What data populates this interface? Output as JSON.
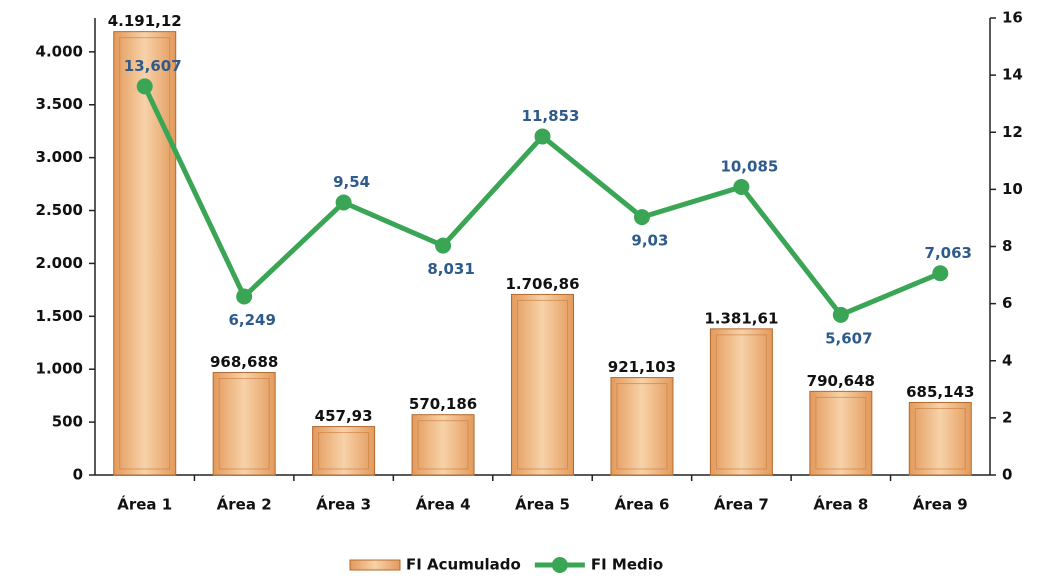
{
  "chart_data": {
    "type": "bar",
    "categories": [
      "Área 1",
      "Área 2",
      "Área 3",
      "Área 4",
      "Área 5",
      "Área 6",
      "Área 7",
      "Área 8",
      "Área 9"
    ],
    "series": [
      {
        "name": "FI Acumulado",
        "type": "bar",
        "color": "#e39a5c",
        "values": [
          4191.12,
          968.688,
          457.93,
          570.186,
          1706.86,
          921.103,
          1381.61,
          790.648,
          685.143
        ],
        "value_labels": [
          "4.191,12",
          "968,688",
          "457,93",
          "570,186",
          "1.706,86",
          "921,103",
          "1.381,61",
          "790,648",
          "685,143"
        ]
      },
      {
        "name": "FI Medio",
        "type": "line",
        "axis": "y2",
        "color": "#3aa655",
        "label_color": "#2e5a8c",
        "values": [
          13.607,
          6.249,
          9.54,
          8.031,
          11.853,
          9.03,
          10.085,
          5.607,
          7.063
        ],
        "value_labels": [
          "13,607",
          "6,249",
          "9,54",
          "8,031",
          "11,853",
          "9,03",
          "10,085",
          "5,607",
          "7,063"
        ]
      }
    ],
    "ylim": [
      0,
      4320
    ],
    "yticks": [
      0,
      500,
      {
        "value": 1000,
        "label": "1.000"
      },
      {
        "value": 1500,
        "label": "1.500"
      },
      {
        "value": 2000,
        "label": "2.000"
      },
      {
        "value": 2500,
        "label": "2.500"
      },
      {
        "value": 3000,
        "label": "3.000"
      },
      {
        "value": 3500,
        "label": "3.500"
      },
      {
        "value": 4000,
        "label": "4.000"
      }
    ],
    "y2lim": [
      0,
      16
    ],
    "y2ticks": [
      0,
      2,
      4,
      6,
      8,
      10,
      12,
      14,
      16
    ],
    "legend": "bottom"
  }
}
